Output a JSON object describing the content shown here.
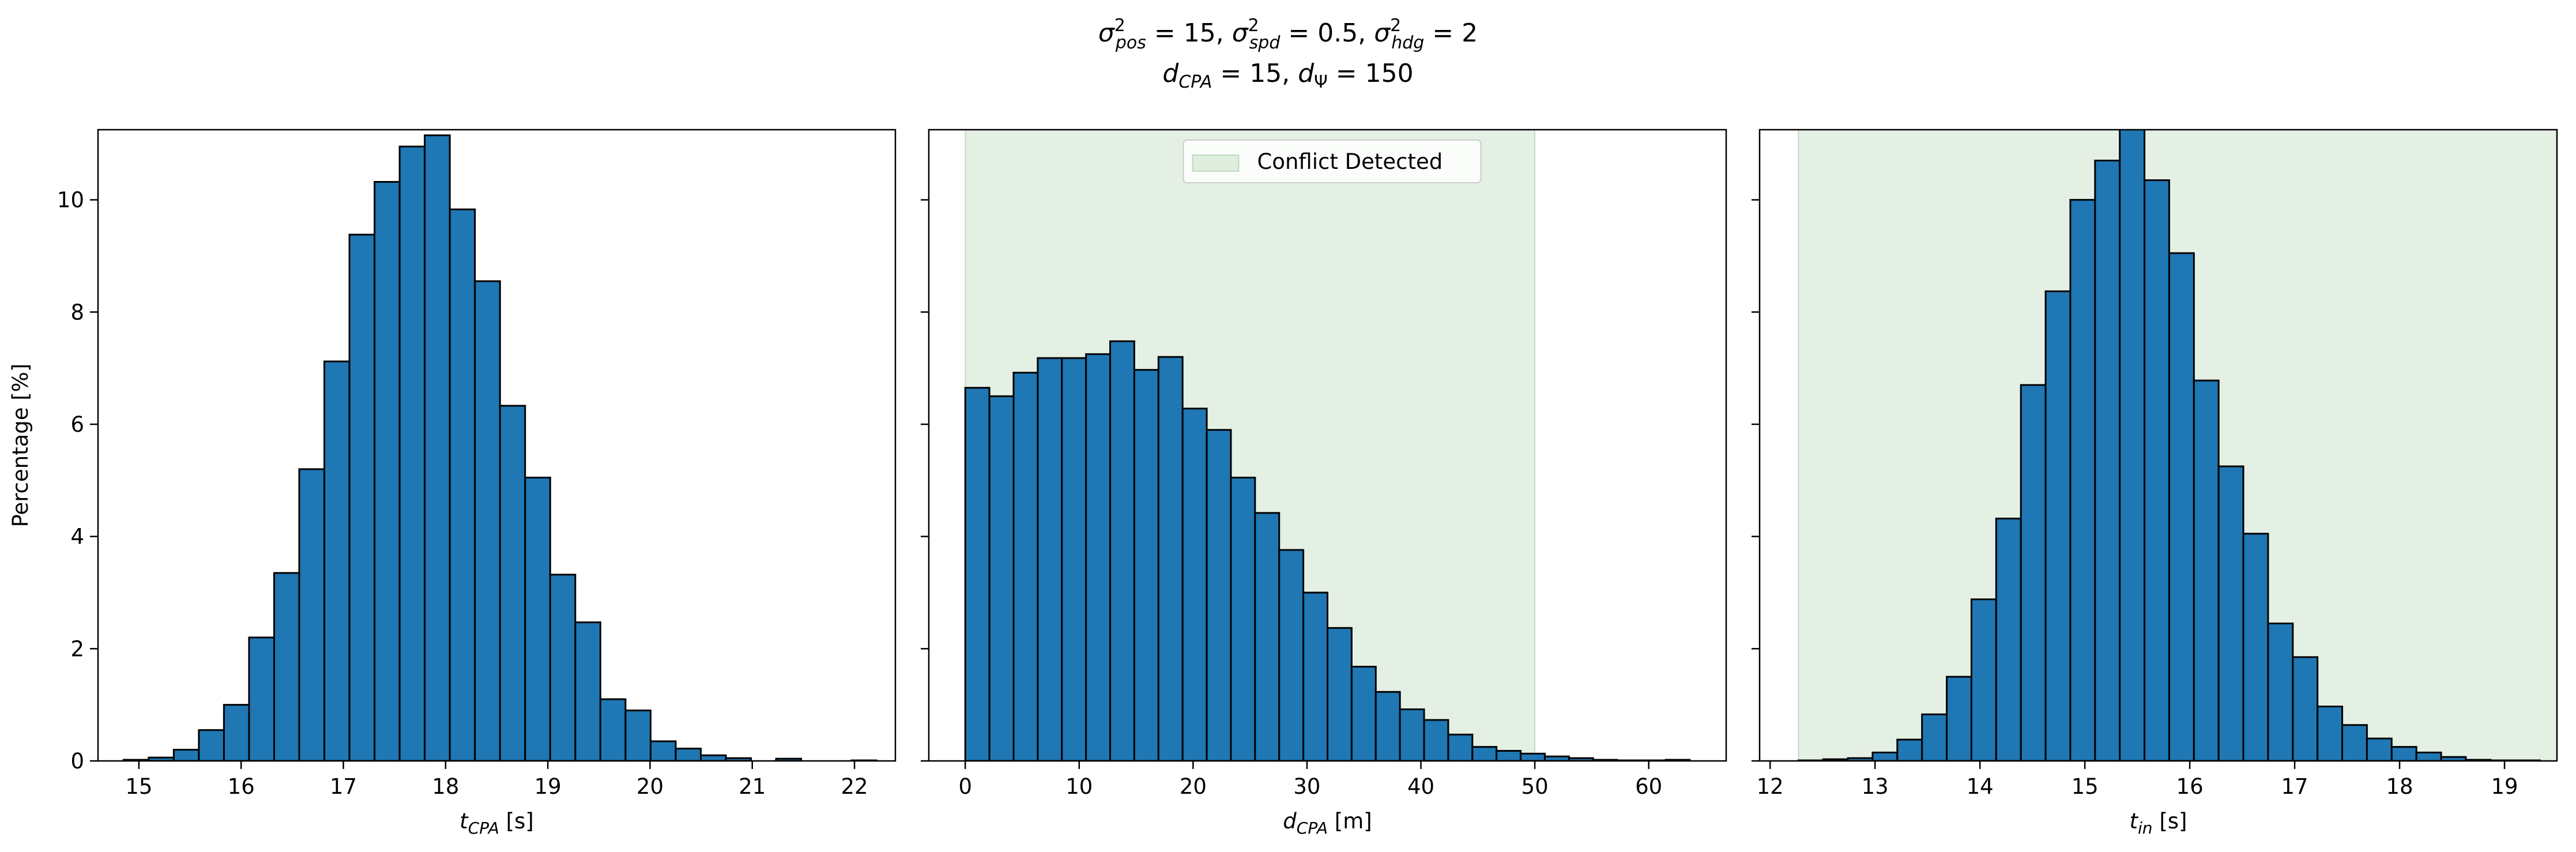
{
  "figure": {
    "title_line1": "σ²pos = 15, σ²spd = 0.5, σ²hdg = 2",
    "title_line2": "dCPA = 15, dΨ = 150"
  },
  "colors": {
    "bar_fill": "#1f77b4",
    "bar_edge": "#000000",
    "span_fill": "#2e8b2e"
  },
  "chart_data": [
    {
      "type": "bar",
      "subtype": "histogram",
      "xlabel": "tCPA [s]",
      "ylabel": "Percentage [%]",
      "xlim": [
        14.6,
        22.4
      ],
      "ylim": [
        0,
        11.25
      ],
      "xticks": [
        15,
        16,
        17,
        18,
        19,
        20,
        21,
        22
      ],
      "yticks": [
        0,
        2,
        4,
        6,
        8,
        10
      ],
      "bin_start": 14.85,
      "bin_width": 0.2455,
      "values": [
        0.02,
        0.06,
        0.2,
        0.55,
        1.0,
        2.2,
        3.35,
        5.2,
        7.12,
        9.38,
        10.32,
        10.95,
        11.15,
        9.83,
        8.55,
        6.33,
        5.05,
        3.32,
        2.47,
        1.1,
        0.9,
        0.35,
        0.22,
        0.1,
        0.05,
        0.0,
        0.04,
        0.0,
        0.0,
        0.01
      ]
    },
    {
      "type": "bar",
      "subtype": "histogram",
      "xlabel": "dCPA [m]",
      "xlim": [
        -3.2,
        66.8
      ],
      "ylim": [
        0,
        11.25
      ],
      "xticks": [
        0,
        10,
        20,
        30,
        40,
        50,
        60
      ],
      "bin_start": 0,
      "bin_width": 2.12,
      "values": [
        6.65,
        6.5,
        6.92,
        7.18,
        7.18,
        7.25,
        7.48,
        6.97,
        7.2,
        6.28,
        5.9,
        5.05,
        4.42,
        3.76,
        3.0,
        2.37,
        1.68,
        1.23,
        0.92,
        0.73,
        0.47,
        0.25,
        0.18,
        0.13,
        0.08,
        0.05,
        0.02,
        0.01,
        0.01,
        0.02
      ],
      "shaded_region": {
        "x0": 0,
        "x1": 50
      },
      "legend": {
        "label": "Conflict Detected",
        "placement": "upper center"
      }
    },
    {
      "type": "bar",
      "subtype": "histogram",
      "xlabel": "tin [s]",
      "xlim": [
        11.9,
        19.5
      ],
      "ylim": [
        0,
        11.25
      ],
      "xticks": [
        12,
        13,
        14,
        15,
        16,
        17,
        18,
        19
      ],
      "bin_start": 12.27,
      "bin_width": 0.2356,
      "values": [
        0.01,
        0.03,
        0.05,
        0.15,
        0.38,
        0.83,
        1.5,
        2.88,
        4.32,
        6.7,
        8.37,
        10.0,
        10.7,
        11.35,
        10.35,
        9.05,
        6.78,
        5.25,
        4.05,
        2.45,
        1.85,
        0.97,
        0.64,
        0.4,
        0.25,
        0.15,
        0.07,
        0.02,
        0.01,
        0.01
      ],
      "shaded_region": {
        "x0": 12.27,
        "x1": 19.5
      }
    }
  ]
}
